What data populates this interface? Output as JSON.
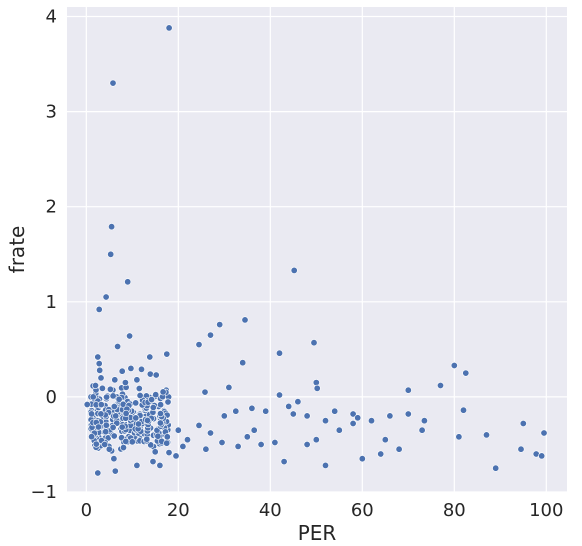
{
  "chart_data": {
    "type": "scatter",
    "xlabel": "PER",
    "ylabel": "frate",
    "xlim": [
      -4.2,
      104.5
    ],
    "ylim": [
      -1,
      4.1
    ],
    "xticks": [
      0,
      20,
      40,
      60,
      80,
      100
    ],
    "yticks": [
      -1,
      0,
      1,
      2,
      3,
      4
    ],
    "grid": true,
    "colors": {
      "background": "#eaeaf2",
      "grid": "#ffffff",
      "marker": "#4c72b0",
      "marker_edge": "#ffffff"
    },
    "points": [
      [
        18,
        3.88
      ],
      [
        5.8,
        3.3
      ],
      [
        5.5,
        1.79
      ],
      [
        5.3,
        1.5
      ],
      [
        45.2,
        1.33
      ],
      [
        9,
        1.21
      ],
      [
        4.3,
        1.05
      ],
      [
        2.8,
        0.92
      ],
      [
        34.5,
        0.81
      ],
      [
        29,
        0.76
      ],
      [
        27,
        0.65
      ],
      [
        24.5,
        0.55
      ],
      [
        49.5,
        0.57
      ],
      [
        42,
        0.46
      ],
      [
        9.4,
        0.64
      ],
      [
        6.8,
        0.53
      ],
      [
        34,
        0.36
      ],
      [
        80,
        0.33
      ],
      [
        82.5,
        0.25
      ],
      [
        77,
        0.12
      ],
      [
        17.5,
        0.45
      ],
      [
        13.8,
        0.42
      ],
      [
        2.5,
        0.42
      ],
      [
        2.8,
        0.35
      ],
      [
        2.9,
        0.28
      ],
      [
        12,
        0.29
      ],
      [
        9.7,
        0.3
      ],
      [
        7.8,
        0.27
      ],
      [
        13.9,
        0.24
      ],
      [
        15.2,
        0.23
      ],
      [
        3.2,
        0.2
      ],
      [
        6.2,
        0.18
      ],
      [
        8.5,
        0.15
      ],
      [
        11,
        0.18
      ],
      [
        2,
        0.12
      ],
      [
        3.5,
        0.09
      ],
      [
        50,
        0.15
      ],
      [
        50.2,
        0.09
      ],
      [
        70,
        0.07
      ],
      [
        25.8,
        0.05
      ],
      [
        31,
        0.1
      ],
      [
        1.5,
        0.0
      ],
      [
        0.2,
        -0.08
      ],
      [
        42,
        0.02
      ],
      [
        46,
        -0.05
      ],
      [
        44,
        -0.1
      ],
      [
        36,
        -0.12
      ],
      [
        39,
        -0.15
      ],
      [
        45,
        -0.18
      ],
      [
        48,
        -0.2
      ],
      [
        54,
        -0.15
      ],
      [
        58,
        -0.18
      ],
      [
        59,
        -0.22
      ],
      [
        62,
        -0.25
      ],
      [
        66,
        -0.2
      ],
      [
        70,
        -0.18
      ],
      [
        73.5,
        -0.25
      ],
      [
        82,
        -0.14
      ],
      [
        73,
        -0.35
      ],
      [
        65,
        -0.45
      ],
      [
        58,
        -0.28
      ],
      [
        55,
        -0.35
      ],
      [
        52,
        -0.25
      ],
      [
        50,
        -0.45
      ],
      [
        48,
        -0.5
      ],
      [
        43,
        -0.68
      ],
      [
        52,
        -0.72
      ],
      [
        60,
        -0.65
      ],
      [
        64,
        -0.6
      ],
      [
        68,
        -0.55
      ],
      [
        81,
        -0.42
      ],
      [
        87,
        -0.4
      ],
      [
        89,
        -0.75
      ],
      [
        95,
        -0.28
      ],
      [
        97.8,
        -0.6
      ],
      [
        99.5,
        -0.38
      ],
      [
        99,
        -0.62
      ],
      [
        94.5,
        -0.55
      ],
      [
        2.5,
        -0.8
      ],
      [
        6,
        -0.65
      ],
      [
        6.3,
        -0.78
      ],
      [
        11,
        -0.72
      ],
      [
        14.5,
        -0.68
      ],
      [
        16,
        -0.72
      ],
      [
        19.5,
        -0.62
      ],
      [
        21,
        -0.52
      ],
      [
        26,
        -0.55
      ],
      [
        29.5,
        -0.48
      ],
      [
        33,
        -0.52
      ],
      [
        35,
        -0.42
      ],
      [
        38,
        -0.5
      ],
      [
        41,
        -0.48
      ],
      [
        27,
        -0.38
      ],
      [
        32.5,
        -0.15
      ],
      [
        30,
        -0.2
      ],
      [
        22,
        -0.45
      ],
      [
        36.5,
        -0.35
      ],
      [
        24.5,
        -0.3
      ],
      [
        20,
        -0.35
      ],
      [
        4,
        -0.5
      ],
      [
        5,
        -0.55
      ]
    ],
    "cluster": {
      "x_range": [
        1,
        18
      ],
      "y_range": [
        -0.6,
        0.15
      ],
      "count": 330
    }
  }
}
